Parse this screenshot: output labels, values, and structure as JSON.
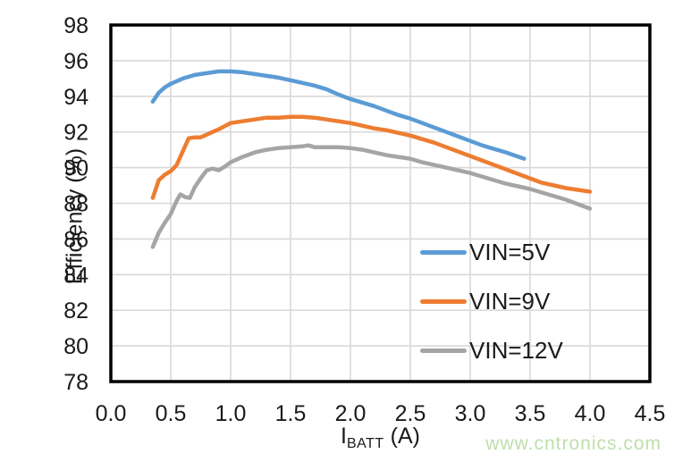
{
  "watermark": {
    "text": "www.cntronics.com",
    "color": "#bddfac"
  },
  "chart_data": {
    "type": "line",
    "title": "",
    "ylabel": "Efficiency (%)",
    "xlabel_main": "I",
    "xlabel_sub": "BATT",
    "xlabel_unit": " (A)",
    "xlim": [
      0,
      4.5
    ],
    "ylim": [
      78,
      98
    ],
    "xticks": [
      0,
      0.5,
      1.0,
      1.5,
      2.0,
      2.5,
      3.0,
      3.5,
      4.0,
      4.5
    ],
    "xtick_labels": [
      "0.0",
      "0.5",
      "1.0",
      "1.5",
      "2.0",
      "2.5",
      "3.0",
      "3.5",
      "4.0",
      "4.5"
    ],
    "yticks": [
      78,
      80,
      82,
      84,
      86,
      88,
      90,
      92,
      94,
      96,
      98
    ],
    "ytick_labels": [
      "78",
      "80",
      "82",
      "84",
      "86",
      "88",
      "90",
      "92",
      "94",
      "96",
      "98"
    ],
    "grid": true,
    "gridline_color": "#d9d9d9",
    "frame_color": "#000000",
    "tick_label_color": "#1a1a1a",
    "legend_position": "inside-lower-right",
    "series": [
      {
        "name": "VIN=5V",
        "color": "#5b9bd5",
        "points": [
          [
            0.35,
            93.7
          ],
          [
            0.4,
            94.2
          ],
          [
            0.45,
            94.5
          ],
          [
            0.5,
            94.7
          ],
          [
            0.6,
            95.0
          ],
          [
            0.7,
            95.2
          ],
          [
            0.8,
            95.3
          ],
          [
            0.9,
            95.4
          ],
          [
            1.0,
            95.4
          ],
          [
            1.1,
            95.35
          ],
          [
            1.2,
            95.25
          ],
          [
            1.3,
            95.15
          ],
          [
            1.4,
            95.05
          ],
          [
            1.5,
            94.9
          ],
          [
            1.6,
            94.75
          ],
          [
            1.7,
            94.6
          ],
          [
            1.8,
            94.4
          ],
          [
            1.9,
            94.1
          ],
          [
            2.0,
            93.85
          ],
          [
            2.1,
            93.65
          ],
          [
            2.2,
            93.45
          ],
          [
            2.3,
            93.2
          ],
          [
            2.4,
            92.95
          ],
          [
            2.5,
            92.75
          ],
          [
            2.6,
            92.5
          ],
          [
            2.7,
            92.25
          ],
          [
            2.8,
            92.0
          ],
          [
            2.9,
            91.75
          ],
          [
            3.0,
            91.5
          ],
          [
            3.1,
            91.25
          ],
          [
            3.2,
            91.05
          ],
          [
            3.3,
            90.85
          ],
          [
            3.45,
            90.5
          ]
        ]
      },
      {
        "name": "VIN=9V",
        "color": "#ed7d31",
        "points": [
          [
            0.35,
            88.3
          ],
          [
            0.4,
            89.3
          ],
          [
            0.45,
            89.6
          ],
          [
            0.5,
            89.8
          ],
          [
            0.55,
            90.15
          ],
          [
            0.6,
            90.9
          ],
          [
            0.65,
            91.65
          ],
          [
            0.7,
            91.7
          ],
          [
            0.75,
            91.7
          ],
          [
            0.8,
            91.85
          ],
          [
            0.9,
            92.15
          ],
          [
            1.0,
            92.5
          ],
          [
            1.1,
            92.6
          ],
          [
            1.2,
            92.7
          ],
          [
            1.3,
            92.8
          ],
          [
            1.4,
            92.8
          ],
          [
            1.5,
            92.85
          ],
          [
            1.6,
            92.85
          ],
          [
            1.7,
            92.8
          ],
          [
            1.8,
            92.7
          ],
          [
            1.9,
            92.6
          ],
          [
            2.0,
            92.5
          ],
          [
            2.1,
            92.35
          ],
          [
            2.2,
            92.2
          ],
          [
            2.3,
            92.1
          ],
          [
            2.4,
            91.95
          ],
          [
            2.5,
            91.8
          ],
          [
            2.6,
            91.6
          ],
          [
            2.7,
            91.4
          ],
          [
            2.8,
            91.15
          ],
          [
            2.9,
            90.9
          ],
          [
            3.0,
            90.65
          ],
          [
            3.1,
            90.4
          ],
          [
            3.2,
            90.15
          ],
          [
            3.3,
            89.9
          ],
          [
            3.4,
            89.65
          ],
          [
            3.5,
            89.4
          ],
          [
            3.6,
            89.15
          ],
          [
            3.7,
            89.0
          ],
          [
            3.8,
            88.85
          ],
          [
            3.9,
            88.75
          ],
          [
            4.0,
            88.65
          ]
        ]
      },
      {
        "name": "VIN=12V",
        "color": "#a5a5a5",
        "points": [
          [
            0.35,
            85.55
          ],
          [
            0.4,
            86.35
          ],
          [
            0.45,
            86.9
          ],
          [
            0.5,
            87.4
          ],
          [
            0.55,
            88.15
          ],
          [
            0.58,
            88.5
          ],
          [
            0.62,
            88.35
          ],
          [
            0.66,
            88.3
          ],
          [
            0.7,
            88.9
          ],
          [
            0.75,
            89.4
          ],
          [
            0.8,
            89.85
          ],
          [
            0.85,
            89.95
          ],
          [
            0.9,
            89.85
          ],
          [
            0.95,
            90.05
          ],
          [
            1.0,
            90.3
          ],
          [
            1.1,
            90.6
          ],
          [
            1.2,
            90.85
          ],
          [
            1.3,
            91.0
          ],
          [
            1.4,
            91.1
          ],
          [
            1.5,
            91.15
          ],
          [
            1.6,
            91.2
          ],
          [
            1.65,
            91.25
          ],
          [
            1.7,
            91.15
          ],
          [
            1.8,
            91.15
          ],
          [
            1.9,
            91.15
          ],
          [
            2.0,
            91.1
          ],
          [
            2.1,
            91.0
          ],
          [
            2.2,
            90.85
          ],
          [
            2.3,
            90.7
          ],
          [
            2.4,
            90.6
          ],
          [
            2.5,
            90.5
          ],
          [
            2.6,
            90.3
          ],
          [
            2.7,
            90.15
          ],
          [
            2.8,
            90.0
          ],
          [
            2.9,
            89.85
          ],
          [
            3.0,
            89.7
          ],
          [
            3.1,
            89.5
          ],
          [
            3.2,
            89.3
          ],
          [
            3.3,
            89.1
          ],
          [
            3.4,
            88.95
          ],
          [
            3.5,
            88.8
          ],
          [
            3.6,
            88.6
          ],
          [
            3.7,
            88.4
          ],
          [
            3.8,
            88.2
          ],
          [
            3.9,
            87.95
          ],
          [
            4.0,
            87.7
          ]
        ]
      }
    ]
  }
}
